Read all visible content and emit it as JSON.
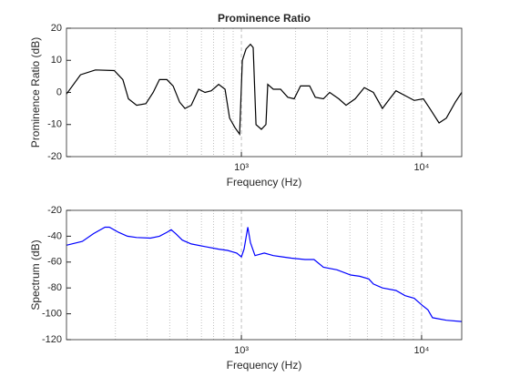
{
  "chart_data": [
    {
      "type": "line",
      "title": "Prominence Ratio",
      "xlabel": "Frequency (Hz)",
      "ylabel": "Prominence Ratio (dB)",
      "xscale": "log",
      "xlim": [
        107,
        16700
      ],
      "ylim": [
        -20,
        20
      ],
      "xticks": [
        {
          "value": 1000,
          "label": "10³"
        },
        {
          "value": 10000,
          "label": "10⁴"
        }
      ],
      "xminorticks": [
        200,
        300,
        400,
        500,
        600,
        700,
        800,
        900,
        2000,
        3000,
        4000,
        5000,
        6000,
        7000,
        8000,
        9000
      ],
      "yticks": [
        -20,
        -10,
        0,
        10,
        20
      ],
      "xgrid": true,
      "xminorgrid": true,
      "color": "#000000",
      "x": [
        107,
        128,
        155,
        197,
        220,
        236,
        262,
        295,
        324,
        351,
        386,
        418,
        454,
        486,
        527,
        579,
        628,
        681,
        748,
        811,
        860,
        922,
        977,
        1012,
        1060,
        1123,
        1163,
        1205,
        1291,
        1369,
        1401,
        1503,
        1650,
        1810,
        1963,
        2130,
        2392,
        2570,
        2852,
        3090,
        3470,
        3810,
        4280,
        4810,
        5400,
        6060,
        6650,
        7210,
        8100,
        9100,
        10230,
        11100,
        12500,
        13720,
        15400,
        16700
      ],
      "values": [
        -0.5,
        5.5,
        7,
        6.8,
        4,
        -2,
        -4,
        -3.5,
        0,
        4,
        4,
        2,
        -3,
        -5,
        -4,
        1,
        0,
        0.5,
        2.5,
        1,
        -8,
        -11,
        -13,
        10,
        13.5,
        15,
        14,
        -10,
        -11.5,
        -10,
        2.5,
        1,
        1,
        -1.5,
        -2,
        2,
        2,
        -1.5,
        -2,
        0,
        -2,
        -4,
        -2,
        1.5,
        0,
        -5,
        -2,
        0.5,
        -1,
        -2.5,
        -2,
        -5,
        -9.5,
        -8,
        -3,
        0
      ]
    },
    {
      "type": "line",
      "xlabel": "Frequency (Hz)",
      "ylabel": "Spectrum (dB)",
      "xscale": "log",
      "xlim": [
        107,
        16700
      ],
      "ylim": [
        -120,
        -20
      ],
      "xticks": [
        {
          "value": 1000,
          "label": "10³"
        },
        {
          "value": 10000,
          "label": "10⁴"
        }
      ],
      "xminorticks": [
        200,
        300,
        400,
        500,
        600,
        700,
        800,
        900,
        2000,
        3000,
        4000,
        5000,
        6000,
        7000,
        8000,
        9000
      ],
      "yticks": [
        -120,
        -100,
        -80,
        -60,
        -40,
        -20
      ],
      "xgrid": true,
      "xminorgrid": true,
      "color": "#0000ff",
      "x": [
        107,
        131,
        151,
        175,
        185,
        208,
        233,
        262,
        313,
        351,
        386,
        408,
        432,
        470,
        527,
        628,
        748,
        838,
        942,
        1000,
        1035,
        1085,
        1123,
        1190,
        1340,
        1503,
        1690,
        1895,
        2255,
        2530,
        2852,
        3390,
        4040,
        4530,
        5090,
        5400,
        6060,
        7210,
        8100,
        9100,
        10000,
        10850,
        11500,
        13720,
        16700
      ],
      "values": [
        -47,
        -44,
        -38,
        -33,
        -33,
        -37,
        -40,
        -41,
        -41.5,
        -40,
        -37,
        -35,
        -38,
        -43,
        -46,
        -48,
        -50,
        -51,
        -53,
        -56,
        -50,
        -33,
        -45,
        -55,
        -53,
        -55,
        -56,
        -57,
        -58,
        -58,
        -64,
        -66,
        -70,
        -71,
        -73,
        -77,
        -80,
        -82,
        -86,
        -88,
        -93,
        -97,
        -103,
        -105,
        -106
      ]
    }
  ]
}
